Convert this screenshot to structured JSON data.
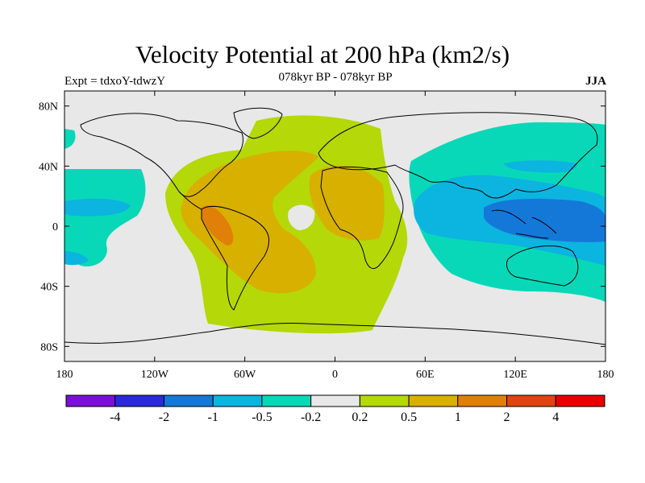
{
  "header": {
    "title": "Velocity Potential at 200 hPa (km2/s)",
    "subtitle": "078kyr BP - 078kyr BP",
    "expt": "Expt = tdxoY-tdwzY",
    "season": "JJA"
  },
  "map": {
    "projection": "cylindrical-equidistant",
    "lon_range": [
      -180,
      180
    ],
    "lat_range": [
      -90,
      90
    ],
    "x_ticks": [
      {
        "value": -180,
        "label": "180"
      },
      {
        "value": -120,
        "label": "120W"
      },
      {
        "value": -60,
        "label": "60W"
      },
      {
        "value": 0,
        "label": "0"
      },
      {
        "value": 60,
        "label": "60E"
      },
      {
        "value": 120,
        "label": "120E"
      },
      {
        "value": 180,
        "label": "180"
      }
    ],
    "y_ticks": [
      {
        "value": 80,
        "label": "80N"
      },
      {
        "value": 40,
        "label": "40N"
      },
      {
        "value": 0,
        "label": "0"
      },
      {
        "value": -40,
        "label": "40S"
      },
      {
        "value": -80,
        "label": "80S"
      }
    ],
    "background_color": "#e8e8e8"
  },
  "colorbar": {
    "colors": [
      "#7a10d8",
      "#2a2ad8",
      "#1478d8",
      "#0cb4e0",
      "#08d8b8",
      "#e8e8e8",
      "#b4d808",
      "#d8b000",
      "#e08008",
      "#e04410",
      "#e80000"
    ],
    "labels": [
      "-4",
      "-2",
      "-1",
      "-0.5",
      "-0.2",
      "0.2",
      "0.5",
      "1",
      "2",
      "4"
    ]
  }
}
